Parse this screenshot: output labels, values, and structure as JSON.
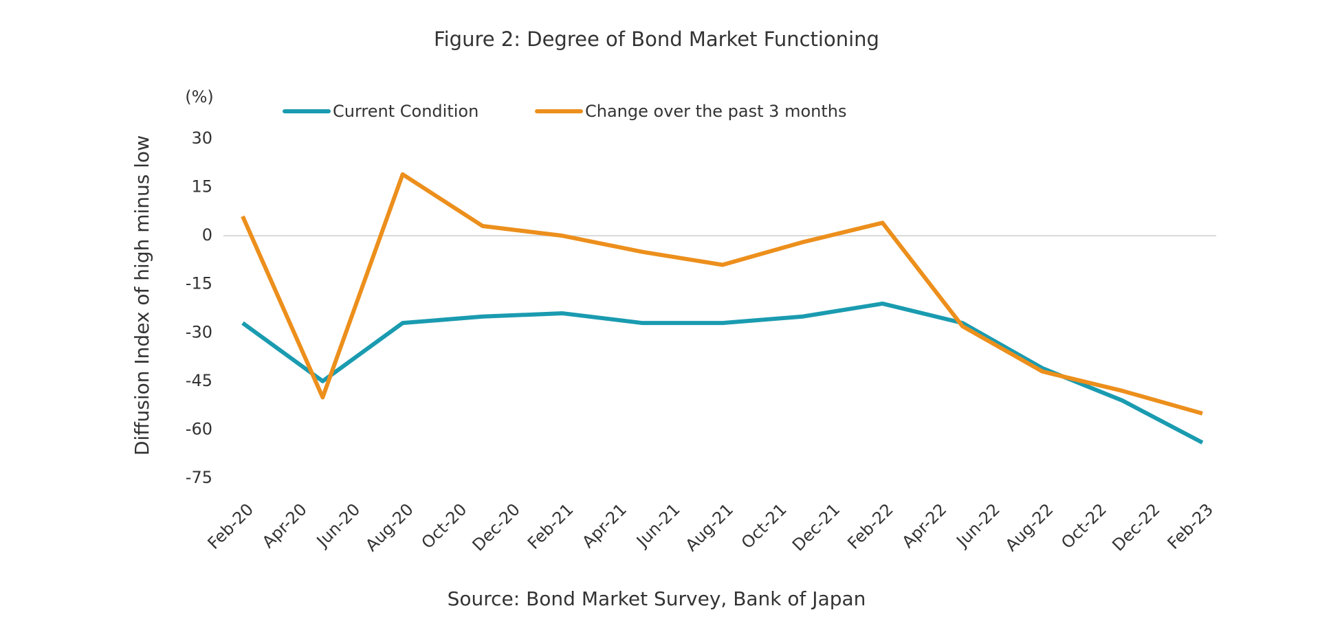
{
  "chart_data": {
    "type": "line",
    "title": "Figure 2: Degree of Bond Market Functioning",
    "y_unit": "(%)",
    "ylabel": "Diffusion Index of high minus low",
    "source": "Source: Bond Market Survey, Bank of Japan",
    "x": [
      0,
      3,
      6,
      9,
      12,
      15,
      18,
      21,
      24,
      27,
      30,
      33,
      36
    ],
    "xlim": [
      0,
      36
    ],
    "xticks": [
      {
        "value": 0,
        "label": "Feb-20"
      },
      {
        "value": 2,
        "label": "Apr-20"
      },
      {
        "value": 4,
        "label": "Jun-20"
      },
      {
        "value": 6,
        "label": "Aug-20"
      },
      {
        "value": 8,
        "label": "Oct-20"
      },
      {
        "value": 10,
        "label": "Dec-20"
      },
      {
        "value": 12,
        "label": "Feb-21"
      },
      {
        "value": 14,
        "label": "Apr-21"
      },
      {
        "value": 16,
        "label": "Jun-21"
      },
      {
        "value": 18,
        "label": "Aug-21"
      },
      {
        "value": 20,
        "label": "Oct-21"
      },
      {
        "value": 22,
        "label": "Dec-21"
      },
      {
        "value": 24,
        "label": "Feb-22"
      },
      {
        "value": 26,
        "label": "Apr-22"
      },
      {
        "value": 28,
        "label": "Jun-22"
      },
      {
        "value": 30,
        "label": "Aug-22"
      },
      {
        "value": 32,
        "label": "Oct-22"
      },
      {
        "value": 34,
        "label": "Dec-22"
      },
      {
        "value": 36,
        "label": "Feb-23"
      }
    ],
    "ylim": [
      -75,
      30
    ],
    "yticks": [
      30,
      15,
      0,
      -15,
      -30,
      -45,
      -60,
      -75
    ],
    "zero_line": true,
    "series": [
      {
        "name": "Current Condition",
        "color": "#1a9bb0",
        "values": [
          -27,
          -45,
          -27,
          -25,
          -24,
          -27,
          -27,
          -25,
          -21,
          -27,
          -41,
          -51,
          -64
        ]
      },
      {
        "name": "Change over the past 3 months",
        "color": "#ec8f1c",
        "values": [
          6,
          -50,
          19,
          3,
          0,
          -5,
          -9,
          -2,
          4,
          -28,
          -42,
          -48,
          -55
        ]
      }
    ]
  }
}
